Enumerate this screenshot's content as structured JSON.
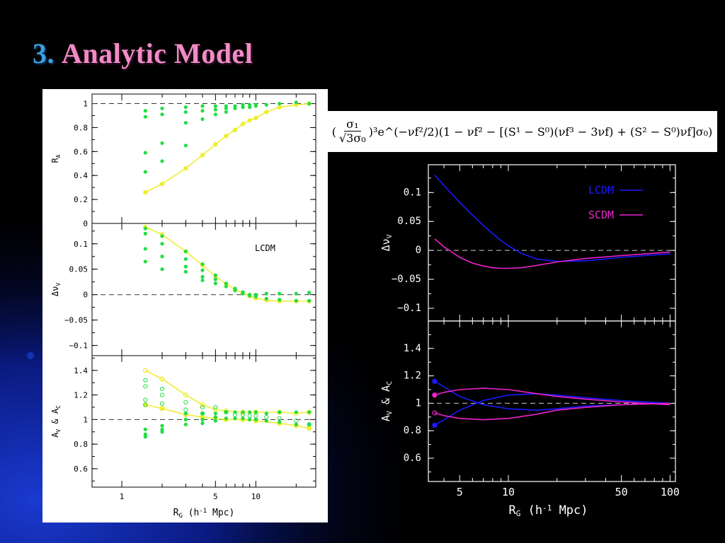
{
  "slide": {
    "title_number": "3.",
    "title_text": "Analytic Model"
  },
  "formula": {
    "open": "(",
    "frac_num": "σ₁",
    "frac_den": "√3σ₀",
    "rest": ")³e^(−νf²/2)(1 − νf² − [(S¹ − S⁰)(νf³ − 3νf) + (S² − S⁰)νf]σ₀)"
  },
  "colors": {
    "green_points": "#22dd44",
    "yellow_curve": "#eeee33",
    "lcdm": "#1a1aff",
    "scdm": "#ee22cc",
    "slide_accent_blue": "#3aa0e0",
    "slide_accent_pink": "#f08cc4"
  },
  "chart_data": [
    {
      "id": "left-top",
      "type": "scatter",
      "ylabel": "R_A",
      "xscale": "log",
      "xlim": [
        0.6,
        28
      ],
      "ylim": [
        0,
        1.08
      ],
      "yticks": [
        "0",
        "0.2",
        "0.4",
        "0.6",
        "0.8",
        "1"
      ],
      "yticks_values": [
        0,
        0.2,
        0.4,
        0.6,
        0.8,
        1
      ],
      "reference_line": 1,
      "curve": {
        "x": [
          1.5,
          2,
          3,
          4,
          5,
          6,
          7,
          8,
          9,
          10,
          12,
          15,
          20,
          25
        ],
        "y": [
          0.26,
          0.33,
          0.46,
          0.57,
          0.66,
          0.73,
          0.78,
          0.83,
          0.86,
          0.88,
          0.93,
          0.97,
          0.99,
          1.0
        ]
      },
      "points": {
        "x": [
          1.5,
          1.5,
          1.5,
          1.5,
          2,
          2,
          2,
          2,
          3,
          3,
          3,
          3,
          4,
          4,
          4,
          5,
          5,
          5,
          6,
          6,
          6,
          7,
          7,
          8,
          8,
          9,
          9,
          10,
          10,
          12,
          15,
          20,
          25
        ],
        "y": [
          0.94,
          0.89,
          0.59,
          0.43,
          0.96,
          0.91,
          0.67,
          0.52,
          0.97,
          0.93,
          0.84,
          0.65,
          0.98,
          0.94,
          0.87,
          0.98,
          0.95,
          0.91,
          0.98,
          0.96,
          0.93,
          0.98,
          0.96,
          0.99,
          0.97,
          0.99,
          0.97,
          0.99,
          0.98,
          0.99,
          1.0,
          1.01,
          1.0
        ]
      }
    },
    {
      "id": "left-mid",
      "type": "scatter",
      "ylabel": "Δν_V",
      "annotation": "LCDM",
      "xscale": "log",
      "xlim": [
        0.6,
        28
      ],
      "ylim": [
        -0.12,
        0.14
      ],
      "yticks": [
        "−0.1",
        "−0.05",
        "0",
        "0.05",
        "0.1"
      ],
      "yticks_values": [
        -0.1,
        -0.05,
        0,
        0.05,
        0.1
      ],
      "reference_line": 0,
      "curve": {
        "x": [
          1.5,
          2,
          3,
          4,
          5,
          6,
          7,
          8,
          9,
          10,
          12,
          15,
          20,
          25
        ],
        "y": [
          0.133,
          0.118,
          0.085,
          0.058,
          0.036,
          0.021,
          0.01,
          0.003,
          -0.003,
          -0.007,
          -0.011,
          -0.013,
          -0.013,
          -0.013
        ]
      },
      "points": {
        "x": [
          1.5,
          1.5,
          1.5,
          1.5,
          2,
          2,
          2,
          2,
          3,
          3,
          3,
          3,
          4,
          4,
          4,
          4,
          5,
          5,
          5,
          6,
          6,
          7,
          7,
          8,
          8,
          9,
          9,
          10,
          10,
          12,
          12,
          15,
          15,
          20,
          20,
          25,
          25
        ],
        "y": [
          0.13,
          0.12,
          0.09,
          0.065,
          0.115,
          0.1,
          0.075,
          0.05,
          0.085,
          0.07,
          0.055,
          0.045,
          0.06,
          0.048,
          0.035,
          0.028,
          0.038,
          0.03,
          0.022,
          0.022,
          0.016,
          0.012,
          0.008,
          0.005,
          0.002,
          0.0,
          -0.002,
          -0.004,
          0.0,
          -0.008,
          0.002,
          -0.01,
          0.002,
          -0.012,
          0.002,
          -0.012,
          0.004
        ]
      }
    },
    {
      "id": "left-bottom",
      "type": "scatter",
      "ylabel": "A_V & A_C",
      "xlabel": "R_G (h⁻¹ Mpc)",
      "xscale": "log",
      "xlim": [
        0.6,
        28
      ],
      "ylim": [
        0.45,
        1.52
      ],
      "xticks": [
        "1",
        "5",
        "10"
      ],
      "xticks_values": [
        1,
        5,
        10
      ],
      "yticks": [
        "0.6",
        "0.8",
        "1",
        "1.2",
        "1.4"
      ],
      "yticks_values": [
        0.6,
        0.8,
        1,
        1.2,
        1.4
      ],
      "reference_line": 1,
      "curves": [
        {
          "x": [
            1.5,
            2,
            3,
            4,
            5,
            6,
            8,
            10,
            15,
            20,
            25
          ],
          "y": [
            1.4,
            1.33,
            1.2,
            1.12,
            1.08,
            1.07,
            1.06,
            1.06,
            1.06,
            1.05,
            1.06
          ]
        },
        {
          "x": [
            1.5,
            2,
            3,
            4,
            5,
            6,
            8,
            10,
            15,
            20,
            25
          ],
          "y": [
            1.12,
            1.09,
            1.04,
            1.02,
            1.01,
            1.0,
            1.0,
            0.99,
            0.97,
            0.95,
            0.93
          ]
        }
      ],
      "points_open": {
        "x": [
          1.5,
          1.5,
          1.5,
          1.5,
          2,
          2,
          2,
          3,
          3,
          4,
          4,
          5,
          6,
          7,
          8,
          9,
          10,
          12,
          15,
          20,
          25
        ],
        "y": [
          1.32,
          1.27,
          1.16,
          1.12,
          1.25,
          1.2,
          1.13,
          1.14,
          1.08,
          1.1,
          1.05,
          1.1,
          1.06,
          1.04,
          1.04,
          1.03,
          1.03,
          1.02,
          1.01,
          0.99,
          0.96
        ]
      },
      "points_filled": {
        "x": [
          1.5,
          1.5,
          1.5,
          2,
          2,
          2,
          3,
          3,
          3,
          4,
          4,
          4,
          5,
          5,
          5,
          6,
          6,
          7,
          7,
          8,
          8,
          9,
          9,
          10,
          10,
          12,
          12,
          15,
          15,
          20,
          20,
          25,
          25
        ],
        "y": [
          0.92,
          0.88,
          0.86,
          0.95,
          0.92,
          0.9,
          1.05,
          1.0,
          0.96,
          1.05,
          1.0,
          0.97,
          1.05,
          1.02,
          0.99,
          1.06,
          1.01,
          1.06,
          1.01,
          1.06,
          1.01,
          1.06,
          1.0,
          1.06,
          1.0,
          1.05,
          0.99,
          1.06,
          0.98,
          1.06,
          0.96,
          1.06,
          0.96
        ]
      }
    },
    {
      "id": "right-top",
      "type": "line",
      "ylabel": "Δν_V",
      "xscale": "log",
      "xlim": [
        3.2,
        108
      ],
      "ylim": [
        -0.122,
        0.148
      ],
      "yticks": [
        "−0.1",
        "−0.05",
        "0",
        "0.05",
        "0.1"
      ],
      "yticks_values": [
        -0.1,
        -0.05,
        0,
        0.05,
        0.1
      ],
      "reference_line": 0,
      "legend": {
        "position": "top-right"
      },
      "series": [
        {
          "name": "LCDM",
          "color": "#1a1aff",
          "x": [
            3.5,
            4,
            5,
            6,
            7,
            8,
            9,
            10,
            12,
            15,
            20,
            30,
            50,
            70,
            100
          ],
          "y": [
            0.13,
            0.112,
            0.083,
            0.061,
            0.043,
            0.029,
            0.017,
            0.008,
            -0.005,
            -0.015,
            -0.019,
            -0.018,
            -0.012,
            -0.009,
            -0.006
          ]
        },
        {
          "name": "SCDM",
          "color": "#ee22cc",
          "x": [
            3.5,
            4,
            5,
            6,
            7,
            8,
            9,
            10,
            12,
            15,
            20,
            30,
            50,
            70,
            100
          ],
          "y": [
            0.02,
            0.006,
            -0.012,
            -0.022,
            -0.027,
            -0.03,
            -0.031,
            -0.031,
            -0.03,
            -0.026,
            -0.02,
            -0.014,
            -0.009,
            -0.006,
            -0.003
          ]
        }
      ]
    },
    {
      "id": "right-bottom",
      "type": "line",
      "ylabel": "A_V & A_C",
      "xlabel": "R_G (h⁻¹ Mpc)",
      "xscale": "log",
      "xlim": [
        3.2,
        108
      ],
      "ylim": [
        0.43,
        1.6
      ],
      "xticks": [
        "5",
        "10",
        "50",
        "100"
      ],
      "xticks_values": [
        5,
        10,
        50,
        100
      ],
      "yticks": [
        "0.6",
        "0.8",
        "1",
        "1.2",
        "1.4"
      ],
      "yticks_values": [
        0.6,
        0.8,
        1,
        1.2,
        1.4
      ],
      "reference_line": 1,
      "series": [
        {
          "name": "LCDM A_V",
          "color": "#1a1aff",
          "x": [
            3.5,
            4,
            5,
            7,
            10,
            15,
            20,
            30,
            50,
            100
          ],
          "y": [
            1.16,
            1.12,
            1.05,
            0.99,
            0.96,
            0.95,
            0.96,
            0.98,
            0.99,
            1.0
          ]
        },
        {
          "name": "LCDM A_C",
          "color": "#1a1aff",
          "x": [
            3.5,
            4,
            5,
            7,
            10,
            15,
            20,
            30,
            50,
            100
          ],
          "y": [
            0.84,
            0.88,
            0.95,
            1.02,
            1.06,
            1.07,
            1.06,
            1.04,
            1.02,
            1.0
          ]
        },
        {
          "name": "SCDM A_V",
          "color": "#ee22cc",
          "x": [
            3.5,
            4,
            5,
            7,
            10,
            15,
            20,
            30,
            50,
            100
          ],
          "y": [
            1.06,
            1.08,
            1.1,
            1.11,
            1.1,
            1.07,
            1.05,
            1.03,
            1.01,
            0.99
          ]
        },
        {
          "name": "SCDM A_C",
          "color": "#ee22cc",
          "x": [
            3.5,
            4,
            5,
            7,
            10,
            15,
            20,
            30,
            50,
            100
          ],
          "y": [
            0.93,
            0.91,
            0.89,
            0.88,
            0.89,
            0.92,
            0.95,
            0.97,
            0.99,
            1.0
          ]
        }
      ],
      "markers": [
        {
          "x": 3.5,
          "y": 1.16,
          "color": "#1a1aff",
          "fill": true
        },
        {
          "x": 3.5,
          "y": 0.84,
          "color": "#1a1aff",
          "fill": true
        },
        {
          "x": 3.5,
          "y": 1.06,
          "color": "#ee22cc",
          "fill": true
        },
        {
          "x": 3.5,
          "y": 0.93,
          "color": "#ee22cc",
          "fill": false
        }
      ]
    }
  ]
}
